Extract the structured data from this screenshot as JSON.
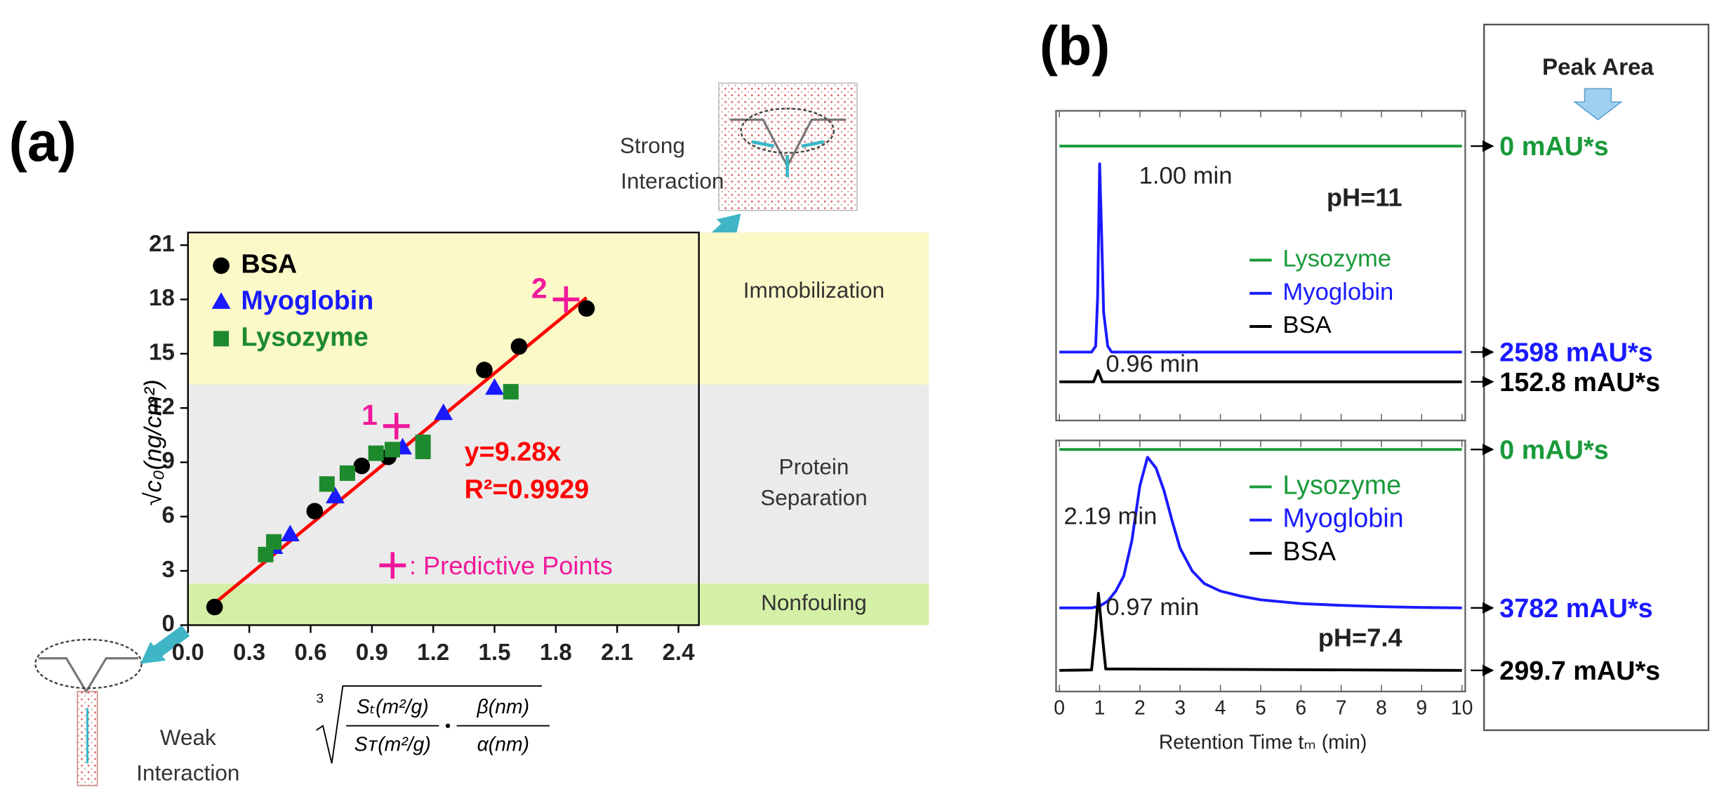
{
  "chart_data": [
    {
      "type": "scatter",
      "panel_label": "(a)",
      "y_label": "√c₀(ng/cm²)",
      "x_label": {
        "index": "3",
        "fractions": [
          {
            "num": "Sₜ(m²/g)",
            "den": "Sᴛ(m²/g)"
          },
          {
            "num": "β(nm)",
            "den": "α(nm)"
          }
        ]
      },
      "xlim": [
        0,
        2.5
      ],
      "xticks": [
        {
          "value": 0,
          "label": "0.0"
        },
        0.3,
        0.6,
        0.9,
        1.2,
        1.5,
        1.8,
        2.1,
        2.4
      ],
      "ylim": [
        0,
        21.7
      ],
      "yticks": [
        0,
        3,
        6,
        9,
        12,
        15,
        18,
        21
      ],
      "bands": [
        {
          "label": [
            "Immobilization"
          ],
          "from": 13.3,
          "to": 21.7,
          "color": "#fcf9c8"
        },
        {
          "label": [
            "Protein",
            "Separation"
          ],
          "from": 2.3,
          "to": 13.3,
          "color": "#ebebeb"
        },
        {
          "label": [
            "Nonfouling"
          ],
          "from": 0,
          "to": 2.3,
          "color": "#d4f0a6"
        }
      ],
      "series": [
        {
          "name": "BSA",
          "color": "#000000",
          "marker": "circle",
          "x": [
            0.13,
            0.62,
            0.85,
            0.98,
            1.45,
            1.62,
            1.95
          ],
          "values": [
            1.0,
            6.3,
            8.8,
            9.3,
            14.1,
            15.4,
            17.5
          ]
        },
        {
          "name": "Myoglobin",
          "color": "#1a1aff",
          "marker": "triangle",
          "x": [
            0.42,
            0.5,
            0.72,
            1.05,
            1.25,
            1.5
          ],
          "values": [
            4.3,
            5.0,
            7.1,
            9.8,
            11.7,
            13.1
          ]
        },
        {
          "name": "Lysozyme",
          "color": "#1d8a2e",
          "marker": "square",
          "x": [
            0.38,
            0.42,
            0.68,
            0.78,
            0.92,
            1.0,
            1.15,
            1.15,
            1.58
          ],
          "values": [
            3.9,
            4.6,
            7.8,
            8.4,
            9.5,
            9.7,
            9.6,
            10.1,
            12.9
          ]
        }
      ],
      "fit": {
        "color": "#ff0000",
        "x": [
          0.1,
          1.95
        ],
        "values": [
          0.93,
          18.1
        ],
        "label": [
          "y=9.28x",
          "R²=0.9929"
        ]
      },
      "predictive": {
        "name": ": Predictive Points",
        "color": "#f0199b",
        "x": [
          1.02,
          1.85
        ],
        "values": [
          11.0,
          18.0
        ],
        "labels": [
          "1",
          "2"
        ]
      },
      "annotations": {
        "strong": [
          "Strong",
          "Interaction"
        ],
        "weak": [
          "Weak",
          "Interaction"
        ]
      }
    },
    {
      "type": "line",
      "panel_label": "(b)",
      "header": "Peak Area",
      "condition": "pH=11",
      "xlim": [
        0,
        10
      ],
      "ylim": [
        0,
        100
      ],
      "series": [
        {
          "name": "Lysozyme",
          "color": "#1a9a3a",
          "x": [
            0,
            10
          ],
          "values": [
            88.6,
            88.6
          ]
        },
        {
          "name": "Myoglobin",
          "color": "#1a1aff",
          "x": [
            0,
            0.8,
            0.9,
            0.95,
            1.0,
            1.05,
            1.1,
            1.2,
            1.3,
            10
          ],
          "values": [
            22.1,
            22.1,
            24,
            40,
            82.9,
            60,
            35,
            24,
            22.1,
            22.1
          ]
        },
        {
          "name": "BSA",
          "color": "#000000",
          "x": [
            0,
            0.85,
            0.96,
            1.07,
            10
          ],
          "values": [
            12.5,
            12.5,
            16.1,
            12.5,
            12.5
          ]
        }
      ],
      "peak_labels": [
        "1.00 min",
        "0.96 min"
      ],
      "peak_areas": {
        "values": [
          0,
          2598,
          152.8
        ],
        "value_labels": [
          "0 mAU*s",
          "2598 mAU*s",
          "152.8 mAU*s"
        ]
      }
    },
    {
      "type": "line",
      "condition": "pH=7.4",
      "x_label": "Retention Time tₘ (min)",
      "xlim": [
        0,
        10
      ],
      "xticks": [
        0,
        1,
        2,
        3,
        4,
        5,
        6,
        7,
        8,
        9,
        10
      ],
      "ylim": [
        0,
        100
      ],
      "series": [
        {
          "name": "Lysozyme",
          "color": "#1a9a3a",
          "x": [
            0,
            10
          ],
          "values": [
            96.4,
            96.4
          ]
        },
        {
          "name": "Myoglobin",
          "color": "#1a1aff",
          "x": [
            0,
            0.8,
            1.0,
            1.2,
            1.4,
            1.6,
            1.8,
            2.0,
            2.19,
            2.4,
            2.6,
            2.8,
            3.0,
            3.3,
            3.6,
            4,
            4.5,
            5,
            6,
            7,
            8,
            9,
            10
          ],
          "values": [
            33.3,
            33.3,
            34,
            36,
            40,
            46,
            60,
            82,
            93.3,
            89,
            80,
            68,
            57,
            48,
            43,
            40,
            38,
            36.5,
            35,
            34.3,
            33.8,
            33.5,
            33.3
          ]
        },
        {
          "name": "BSA",
          "color": "#000000",
          "x": [
            0,
            0.8,
            0.9,
            0.97,
            1.05,
            1.15,
            10
          ],
          "values": [
            8.4,
            8.6,
            25,
            39.1,
            25,
            9,
            8.4
          ]
        }
      ],
      "peak_labels": [
        "2.19 min",
        "0.97 min"
      ],
      "peak_areas": {
        "values": [
          0,
          3782,
          299.7
        ],
        "value_labels": [
          "0 mAU*s",
          "3782 mAU*s",
          "299.7 mAU*s"
        ]
      }
    }
  ]
}
